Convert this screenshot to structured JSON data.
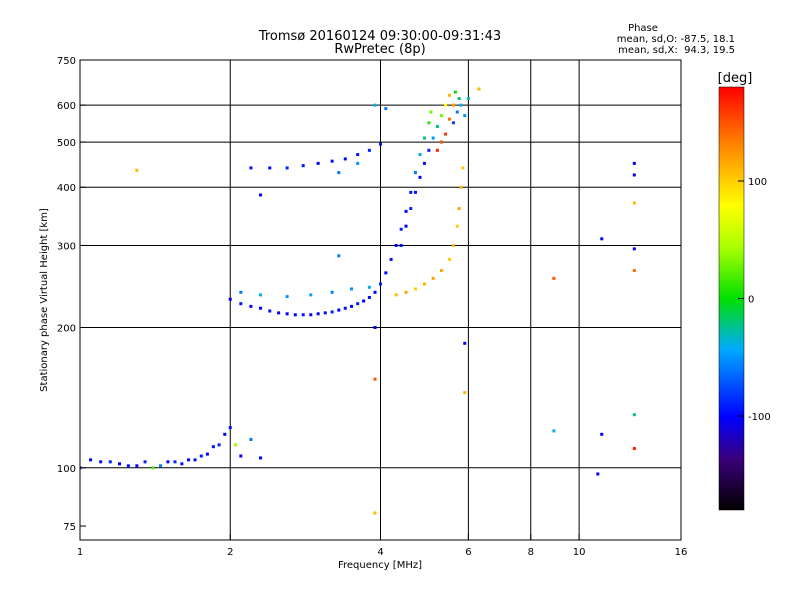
{
  "chart_data": {
    "type": "scatter",
    "title": "Tromsø 20160124 09:30:00-09:31:43",
    "subtitle": "RwPretec (8p)",
    "xlabel": "Frequency [MHz]",
    "ylabel": "Stationary phase Virtual Height [km]",
    "x_scale": "log",
    "y_scale": "log",
    "xlim": [
      1,
      16
    ],
    "ylim": [
      70,
      750
    ],
    "x_ticks": [
      1,
      2,
      4,
      6,
      8,
      10,
      16
    ],
    "y_ticks": [
      75,
      100,
      200,
      300,
      400,
      500,
      600,
      750
    ],
    "x_gridlines": [
      2,
      4,
      6,
      8,
      10
    ],
    "y_gridlines": [
      100,
      200,
      300,
      400,
      500,
      600
    ],
    "grid": true,
    "stats": {
      "heading": "Phase",
      "line1": "mean, sd,O: -87.5, 18.1",
      "line2": "mean, sd,X:  94.3, 19.5"
    },
    "colorbar": {
      "label": "[deg]",
      "ticks": [
        100,
        0,
        -100
      ],
      "range": [
        -180,
        180
      ],
      "colormap": "rainbow"
    },
    "series": [
      {
        "values": [
          [
            1.0,
            100,
            -95
          ],
          [
            1.05,
            104,
            -100
          ],
          [
            1.1,
            103,
            -95
          ],
          [
            1.15,
            103,
            -90
          ],
          [
            1.2,
            102,
            -100
          ],
          [
            1.25,
            101,
            -95
          ],
          [
            1.3,
            101,
            -100
          ],
          [
            1.35,
            103,
            -90
          ],
          [
            1.4,
            100,
            20
          ],
          [
            1.45,
            101,
            -60
          ],
          [
            1.5,
            103,
            -100
          ],
          [
            1.55,
            103,
            -90
          ],
          [
            1.6,
            102,
            -95
          ],
          [
            1.65,
            104,
            -100
          ],
          [
            1.7,
            104,
            -95
          ],
          [
            1.75,
            106,
            -90
          ],
          [
            1.8,
            107,
            -100
          ],
          [
            1.85,
            111,
            -95
          ],
          [
            1.9,
            112,
            -90
          ],
          [
            1.95,
            118,
            -100
          ],
          [
            2.0,
            122,
            -95
          ],
          [
            2.05,
            112,
            40
          ],
          [
            2.1,
            106,
            -100
          ],
          [
            2.0,
            230,
            -100
          ],
          [
            2.1,
            225,
            -95
          ],
          [
            2.2,
            222,
            -100
          ],
          [
            2.3,
            220,
            -100
          ],
          [
            2.4,
            217,
            -95
          ],
          [
            2.5,
            215,
            -100
          ],
          [
            2.6,
            214,
            -100
          ],
          [
            2.7,
            213,
            -100
          ],
          [
            2.8,
            213,
            -95
          ],
          [
            2.9,
            213,
            -100
          ],
          [
            3.0,
            214,
            -100
          ],
          [
            3.1,
            215,
            -95
          ],
          [
            3.2,
            216,
            -90
          ],
          [
            3.3,
            218,
            -100
          ],
          [
            3.4,
            220,
            -95
          ],
          [
            3.5,
            222,
            -100
          ],
          [
            3.6,
            225,
            -90
          ],
          [
            3.7,
            228,
            -100
          ],
          [
            3.8,
            232,
            -95
          ],
          [
            3.9,
            238,
            -100
          ],
          [
            4.0,
            248,
            -90
          ],
          [
            4.1,
            262,
            -100
          ],
          [
            4.2,
            280,
            -95
          ],
          [
            4.3,
            300,
            -100
          ],
          [
            4.4,
            325,
            -90
          ],
          [
            4.5,
            355,
            -100
          ],
          [
            4.6,
            390,
            -95
          ],
          [
            4.7,
            430,
            -60
          ],
          [
            4.8,
            470,
            -40
          ],
          [
            4.9,
            510,
            -20
          ],
          [
            5.0,
            550,
            10
          ],
          [
            5.05,
            580,
            30
          ],
          [
            2.1,
            238,
            -60
          ],
          [
            2.3,
            235,
            -40
          ],
          [
            2.6,
            233,
            -50
          ],
          [
            2.9,
            235,
            -45
          ],
          [
            3.2,
            238,
            -55
          ],
          [
            3.5,
            242,
            -50
          ],
          [
            3.8,
            244,
            -40
          ],
          [
            2.2,
            440,
            -95
          ],
          [
            2.4,
            440,
            -100
          ],
          [
            2.6,
            440,
            -90
          ],
          [
            2.8,
            445,
            -95
          ],
          [
            3.0,
            450,
            -100
          ],
          [
            3.2,
            455,
            -95
          ],
          [
            3.4,
            460,
            -100
          ],
          [
            3.6,
            470,
            -95
          ],
          [
            3.8,
            480,
            -90
          ],
          [
            4.0,
            495,
            -95
          ],
          [
            3.3,
            430,
            -60
          ],
          [
            3.6,
            450,
            -50
          ],
          [
            3.9,
            600,
            -40
          ],
          [
            4.1,
            590,
            -60
          ],
          [
            4.4,
            300,
            -95
          ],
          [
            4.5,
            330,
            -100
          ],
          [
            4.6,
            360,
            -90
          ],
          [
            4.7,
            390,
            -95
          ],
          [
            4.8,
            420,
            -100
          ],
          [
            4.9,
            450,
            -95
          ],
          [
            5.0,
            480,
            -90
          ],
          [
            5.1,
            510,
            -50
          ],
          [
            5.2,
            540,
            -20
          ],
          [
            5.3,
            570,
            30
          ],
          [
            5.4,
            600,
            80
          ],
          [
            5.5,
            630,
            110
          ],
          [
            4.3,
            235,
            110
          ],
          [
            4.5,
            238,
            120
          ],
          [
            4.7,
            242,
            100
          ],
          [
            4.9,
            248,
            110
          ],
          [
            5.1,
            255,
            120
          ],
          [
            5.3,
            265,
            115
          ],
          [
            5.5,
            280,
            100
          ],
          [
            5.6,
            300,
            110
          ],
          [
            5.7,
            330,
            100
          ],
          [
            5.75,
            360,
            115
          ],
          [
            5.8,
            400,
            110
          ],
          [
            5.85,
            440,
            100
          ],
          [
            5.4,
            520,
            160
          ],
          [
            5.5,
            560,
            140
          ],
          [
            5.6,
            600,
            120
          ],
          [
            5.2,
            480,
            170
          ],
          [
            5.3,
            500,
            150
          ],
          [
            5.6,
            550,
            -80
          ],
          [
            5.7,
            580,
            -60
          ],
          [
            5.8,
            600,
            -40
          ],
          [
            5.75,
            620,
            -20
          ],
          [
            5.65,
            640,
            0
          ],
          [
            5.9,
            570,
            -50
          ],
          [
            6.0,
            620,
            -30
          ],
          [
            1.3,
            435,
            110
          ],
          [
            2.3,
            385,
            -100
          ],
          [
            3.3,
            285,
            -60
          ],
          [
            3.9,
            200,
            -100
          ],
          [
            3.9,
            155,
            150
          ],
          [
            3.9,
            80,
            110
          ],
          [
            5.9,
            185,
            -100
          ],
          [
            5.9,
            145,
            110
          ],
          [
            2.2,
            115,
            -60
          ],
          [
            2.3,
            105,
            -100
          ],
          [
            6.3,
            650,
            110
          ],
          [
            8.9,
            255,
            150
          ],
          [
            8.9,
            120,
            -40
          ],
          [
            10.9,
            97,
            -100
          ],
          [
            11.1,
            118,
            -100
          ],
          [
            11.1,
            310,
            -100
          ],
          [
            12.9,
            450,
            -100
          ],
          [
            12.9,
            425,
            -100
          ],
          [
            12.9,
            370,
            110
          ],
          [
            12.9,
            295,
            -100
          ],
          [
            12.9,
            265,
            140
          ],
          [
            12.9,
            130,
            -20
          ],
          [
            12.9,
            110,
            170
          ]
        ]
      }
    ]
  }
}
